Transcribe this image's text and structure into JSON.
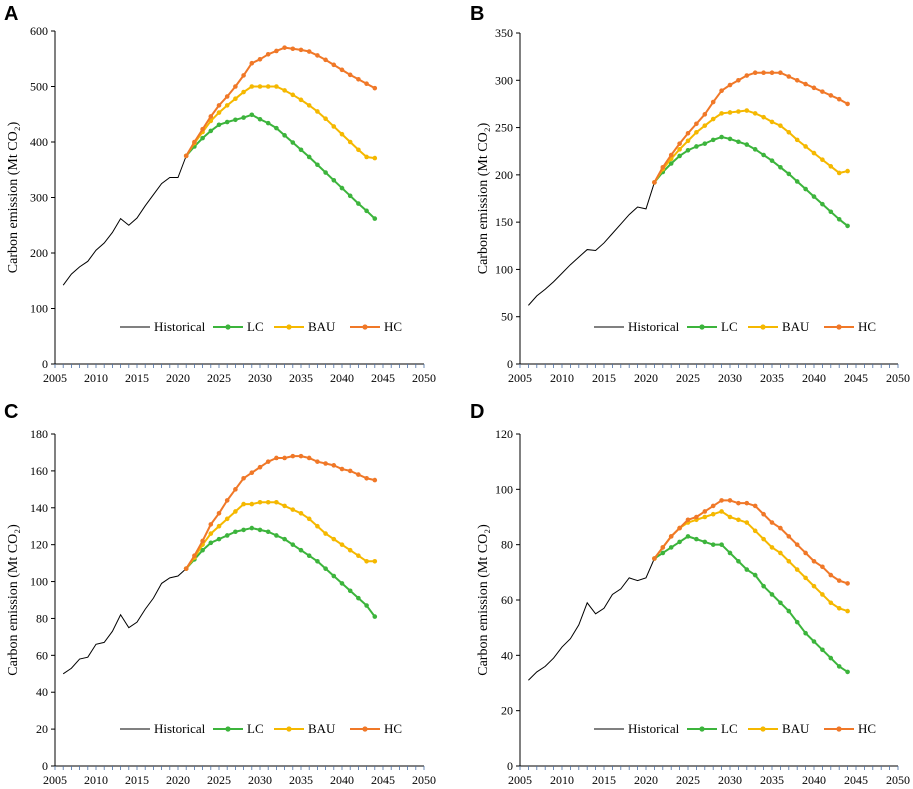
{
  "colors": {
    "historical": "#000000",
    "lc": "#3cb43c",
    "bau": "#f5b800",
    "hc": "#f07828",
    "axis": "#000000"
  },
  "chart_data": [
    {
      "panel": "A",
      "type": "line",
      "ylabel": "Carbon emission (Mt CO₂)",
      "xlabel": "",
      "xlim": [
        2005,
        2050
      ],
      "ylim": [
        0,
        600
      ],
      "xticks": [
        2005,
        2010,
        2015,
        2020,
        2025,
        2030,
        2035,
        2040,
        2045,
        2050
      ],
      "yticks": [
        0,
        100,
        200,
        300,
        400,
        500,
        600
      ],
      "legend": [
        "Historical",
        "LC",
        "BAU",
        "HC"
      ],
      "legend_position": "bottom-right",
      "historical": {
        "x": [
          2006,
          2007,
          2008,
          2009,
          2010,
          2011,
          2012,
          2013,
          2014,
          2015,
          2016,
          2017,
          2018,
          2019,
          2020,
          2021
        ],
        "y": [
          142,
          162,
          175,
          185,
          205,
          218,
          237,
          262,
          250,
          263,
          285,
          305,
          325,
          336,
          336,
          375
        ]
      },
      "series": [
        {
          "name": "LC",
          "x0": 2021,
          "y": [
            375,
            392,
            407,
            420,
            431,
            436,
            440,
            444,
            449,
            441,
            434,
            425,
            412,
            399,
            386,
            373,
            359,
            345,
            331,
            317,
            303,
            289,
            276,
            262
          ]
        },
        {
          "name": "BAU",
          "x0": 2021,
          "y": [
            375,
            398,
            418,
            438,
            453,
            466,
            478,
            490,
            500,
            500,
            500,
            500,
            493,
            485,
            476,
            466,
            455,
            442,
            428,
            414,
            400,
            386,
            373,
            371
          ]
        },
        {
          "name": "HC",
          "x0": 2021,
          "y": [
            375,
            400,
            423,
            446,
            466,
            482,
            500,
            520,
            542,
            549,
            558,
            564,
            570,
            568,
            566,
            563,
            556,
            548,
            539,
            530,
            521,
            513,
            505,
            497
          ]
        }
      ]
    },
    {
      "panel": "B",
      "type": "line",
      "ylabel": "Carbon emission (Mt CO₂)",
      "xlabel": "",
      "xlim": [
        2005,
        2050
      ],
      "ylim": [
        0,
        350
      ],
      "xticks": [
        2005,
        2010,
        2015,
        2020,
        2025,
        2030,
        2035,
        2040,
        2045,
        2050
      ],
      "yticks": [
        0,
        50,
        100,
        150,
        200,
        250,
        300,
        350
      ],
      "legend": [
        "Historical",
        "LC",
        "BAU",
        "HC"
      ],
      "legend_position": "bottom-right",
      "historical": {
        "x": [
          2006,
          2007,
          2008,
          2009,
          2010,
          2011,
          2012,
          2013,
          2014,
          2015,
          2016,
          2017,
          2018,
          2019,
          2020,
          2021
        ],
        "y": [
          62,
          72,
          79,
          87,
          96,
          105,
          113,
          121,
          120,
          128,
          138,
          148,
          158,
          166,
          164,
          192
        ]
      },
      "series": [
        {
          "name": "LC",
          "x0": 2021,
          "y": [
            192,
            203,
            212,
            220,
            226,
            230,
            233,
            237,
            240,
            238,
            235,
            232,
            227,
            221,
            215,
            208,
            201,
            193,
            185,
            177,
            169,
            161,
            153,
            146
          ]
        },
        {
          "name": "BAU",
          "x0": 2021,
          "y": [
            192,
            206,
            217,
            227,
            236,
            245,
            252,
            259,
            265,
            266,
            267,
            268,
            265,
            261,
            256,
            252,
            245,
            237,
            230,
            223,
            216,
            209,
            202,
            204
          ]
        },
        {
          "name": "HC",
          "x0": 2021,
          "y": [
            192,
            208,
            221,
            233,
            244,
            254,
            264,
            277,
            289,
            295,
            300,
            305,
            308,
            308,
            308,
            308,
            304,
            300,
            296,
            292,
            288,
            284,
            280,
            275
          ]
        }
      ]
    },
    {
      "panel": "C",
      "type": "line",
      "ylabel": "Carbon emission (Mt CO₂)",
      "xlabel": "",
      "xlim": [
        2005,
        2050
      ],
      "ylim": [
        0,
        180
      ],
      "xticks": [
        2005,
        2010,
        2015,
        2020,
        2025,
        2030,
        2035,
        2040,
        2045,
        2050
      ],
      "yticks": [
        0,
        20,
        40,
        60,
        80,
        100,
        120,
        140,
        160,
        180
      ],
      "legend": [
        "Historical",
        "LC",
        "BAU",
        "HC"
      ],
      "legend_position": "bottom-right",
      "historical": {
        "x": [
          2006,
          2007,
          2008,
          2009,
          2010,
          2011,
          2012,
          2013,
          2014,
          2015,
          2016,
          2017,
          2018,
          2019,
          2020,
          2021
        ],
        "y": [
          50,
          53,
          58,
          59,
          66,
          67,
          73,
          82,
          75,
          78,
          85,
          91,
          99,
          102,
          103,
          107
        ]
      },
      "series": [
        {
          "name": "LC",
          "x0": 2021,
          "y": [
            107,
            112,
            117,
            121,
            123,
            125,
            127,
            128,
            129,
            128,
            127,
            125,
            123,
            120,
            117,
            114,
            111,
            107,
            103,
            99,
            95,
            91,
            87,
            81
          ]
        },
        {
          "name": "BAU",
          "x0": 2021,
          "y": [
            107,
            113,
            120,
            126,
            130,
            134,
            138,
            142,
            142,
            143,
            143,
            143,
            141,
            139,
            137,
            134,
            130,
            126,
            123,
            120,
            117,
            114,
            111,
            111
          ]
        },
        {
          "name": "HC",
          "x0": 2021,
          "y": [
            107,
            114,
            122,
            131,
            137,
            144,
            150,
            156,
            159,
            162,
            165,
            167,
            167,
            168,
            168,
            167,
            165,
            164,
            163,
            161,
            160,
            158,
            156,
            155
          ]
        }
      ]
    },
    {
      "panel": "D",
      "type": "line",
      "ylabel": "Carbon emission (Mt CO₂)",
      "xlabel": "",
      "xlim": [
        2005,
        2050
      ],
      "ylim": [
        0,
        120
      ],
      "xticks": [
        2005,
        2010,
        2015,
        2020,
        2025,
        2030,
        2035,
        2040,
        2045,
        2050
      ],
      "yticks": [
        0,
        20,
        40,
        60,
        80,
        100,
        120
      ],
      "legend": [
        "Historical",
        "LC",
        "BAU",
        "HC"
      ],
      "legend_position": "bottom-right",
      "historical": {
        "x": [
          2006,
          2007,
          2008,
          2009,
          2010,
          2011,
          2012,
          2013,
          2014,
          2015,
          2016,
          2017,
          2018,
          2019,
          2020,
          2021
        ],
        "y": [
          31,
          34,
          36,
          39,
          43,
          46,
          51,
          59,
          55,
          57,
          62,
          64,
          68,
          67,
          68,
          75
        ]
      },
      "series": [
        {
          "name": "LC",
          "x0": 2021,
          "y": [
            75,
            77,
            79,
            81,
            83,
            82,
            81,
            80,
            80,
            77,
            74,
            71,
            69,
            65,
            62,
            59,
            56,
            52,
            48,
            45,
            42,
            39,
            36,
            34
          ]
        },
        {
          "name": "BAU",
          "x0": 2021,
          "y": [
            75,
            79,
            83,
            86,
            88,
            89,
            90,
            91,
            92,
            90,
            89,
            88,
            85,
            82,
            79,
            77,
            74,
            71,
            68,
            65,
            62,
            59,
            57,
            56
          ]
        },
        {
          "name": "HC",
          "x0": 2021,
          "y": [
            75,
            79,
            83,
            86,
            89,
            90,
            92,
            94,
            96,
            96,
            95,
            95,
            94,
            91,
            88,
            86,
            83,
            80,
            77,
            74,
            72,
            69,
            67,
            66
          ]
        }
      ]
    }
  ]
}
